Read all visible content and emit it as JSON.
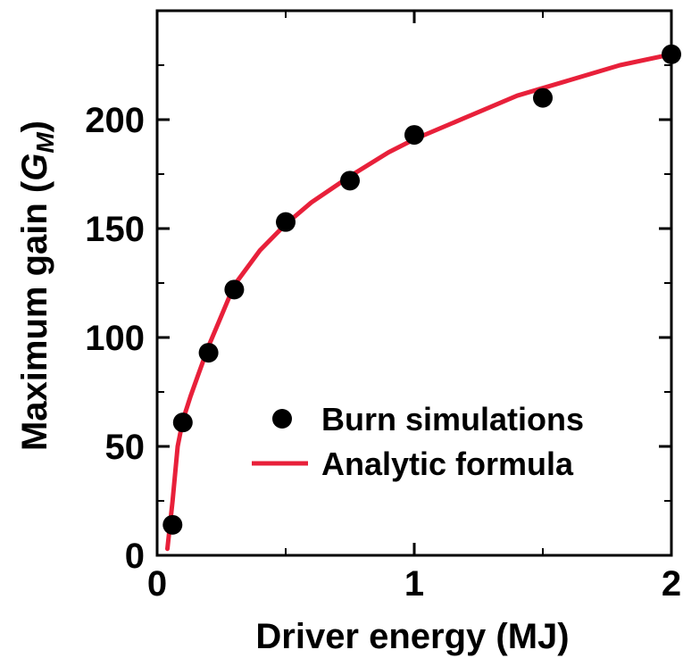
{
  "chart_data": {
    "type": "scatter",
    "xlabel": "Driver energy (MJ)",
    "ylabel": {
      "main": "Maximum gain (",
      "symbol": "G",
      "subscript": "M",
      "close": ")"
    },
    "xlim": [
      0,
      2
    ],
    "ylim": [
      0,
      250
    ],
    "xticks": [
      0,
      1,
      2
    ],
    "xtick_labels": [
      "0",
      "1",
      "2"
    ],
    "yticks": [
      0,
      50,
      100,
      150,
      200
    ],
    "ytick_labels": [
      "0",
      "50",
      "100",
      "150",
      "200"
    ],
    "grid": false,
    "legend": "bottom-right",
    "series": [
      {
        "name": "Burn simulations",
        "kind": "scatter",
        "color": "#000000",
        "x": [
          0.06,
          0.1,
          0.2,
          0.3,
          0.5,
          0.75,
          1.0,
          1.5,
          2.0
        ],
        "y": [
          14,
          61,
          93,
          122,
          153,
          172,
          193,
          210,
          230
        ]
      },
      {
        "name": "Analytic formula",
        "kind": "line",
        "color": "#e8203a",
        "x": [
          0.04,
          0.06,
          0.08,
          0.1,
          0.13,
          0.16,
          0.2,
          0.25,
          0.3,
          0.4,
          0.5,
          0.6,
          0.75,
          0.9,
          1.0,
          1.2,
          1.4,
          1.6,
          1.8,
          2.0
        ],
        "y": [
          3,
          25,
          50,
          62,
          73,
          83,
          96,
          110,
          124,
          140,
          152,
          162,
          174,
          185,
          191,
          201,
          211,
          218,
          225,
          230
        ]
      }
    ]
  }
}
